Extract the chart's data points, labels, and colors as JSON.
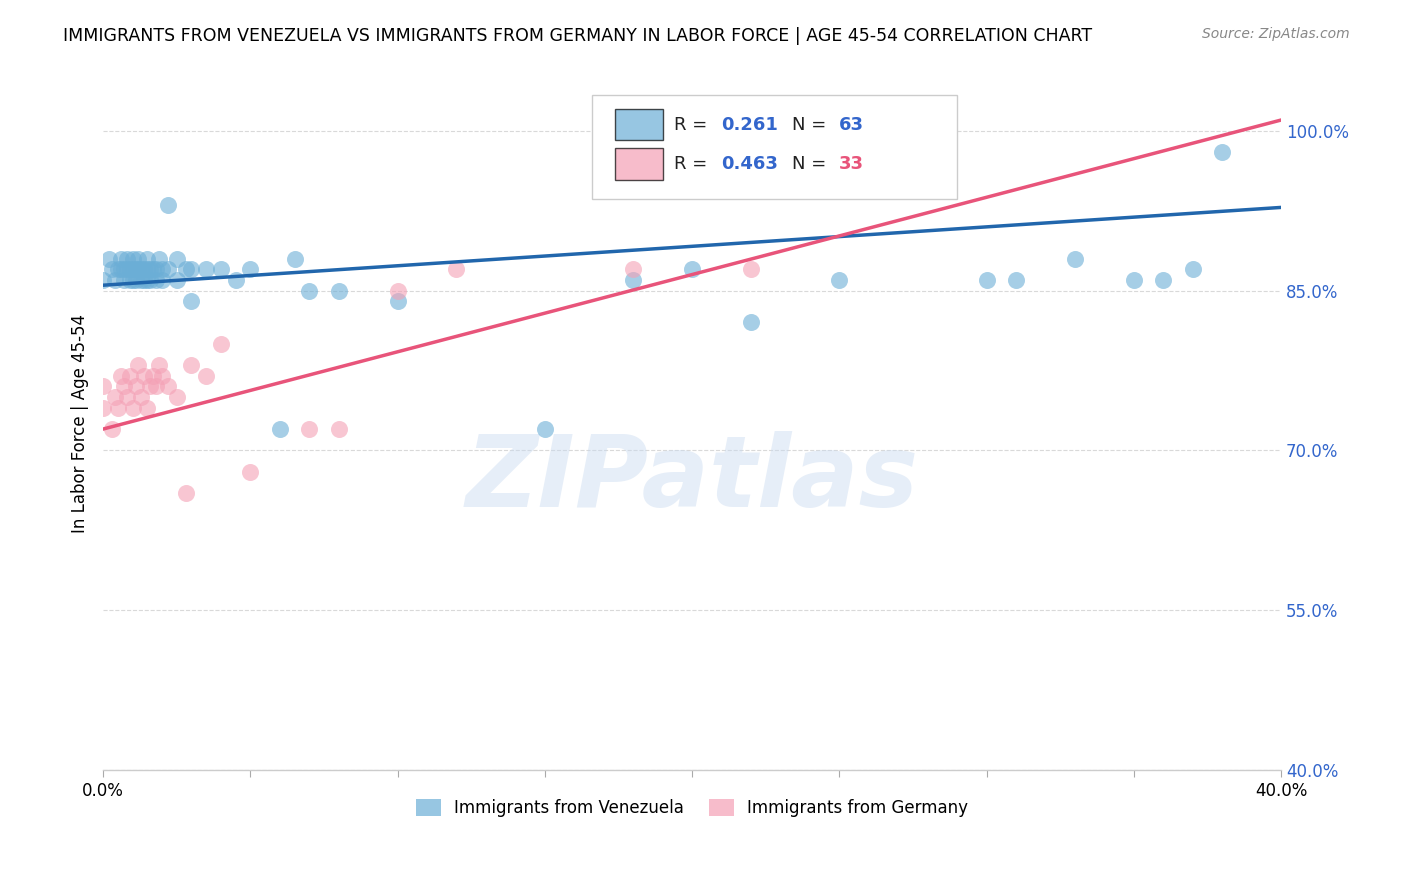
{
  "title": "IMMIGRANTS FROM VENEZUELA VS IMMIGRANTS FROM GERMANY IN LABOR FORCE | AGE 45-54 CORRELATION CHART",
  "source": "Source: ZipAtlas.com",
  "ylabel": "In Labor Force | Age 45-54",
  "xlim": [
    0.0,
    0.4
  ],
  "ylim": [
    0.4,
    1.05
  ],
  "yticks": [
    0.4,
    0.55,
    0.7,
    0.85,
    1.0
  ],
  "ytick_labels": [
    "40.0%",
    "55.0%",
    "70.0%",
    "85.0%",
    "100.0%"
  ],
  "venezuela_color": "#6baed6",
  "germany_color": "#f4a0b5",
  "venezuela_R": 0.261,
  "venezuela_N": 63,
  "germany_R": 0.463,
  "germany_N": 33,
  "venezuela_line_color": "#2166ac",
  "germany_line_color": "#e8547a",
  "background_color": "#ffffff",
  "grid_color": "#d9d9d9",
  "watermark": "ZIPatlas",
  "venezuela_x": [
    0.0,
    0.002,
    0.003,
    0.004,
    0.005,
    0.006,
    0.006,
    0.007,
    0.007,
    0.008,
    0.008,
    0.009,
    0.009,
    0.01,
    0.01,
    0.01,
    0.011,
    0.011,
    0.012,
    0.012,
    0.013,
    0.013,
    0.014,
    0.014,
    0.015,
    0.015,
    0.015,
    0.016,
    0.016,
    0.017,
    0.018,
    0.018,
    0.019,
    0.02,
    0.02,
    0.022,
    0.022,
    0.025,
    0.025,
    0.028,
    0.03,
    0.03,
    0.035,
    0.04,
    0.045,
    0.05,
    0.06,
    0.065,
    0.07,
    0.08,
    0.1,
    0.15,
    0.18,
    0.2,
    0.22,
    0.25,
    0.3,
    0.31,
    0.33,
    0.35,
    0.36,
    0.37,
    0.38
  ],
  "venezuela_y": [
    0.86,
    0.88,
    0.87,
    0.86,
    0.87,
    0.88,
    0.87,
    0.86,
    0.87,
    0.88,
    0.87,
    0.86,
    0.87,
    0.86,
    0.87,
    0.88,
    0.86,
    0.87,
    0.88,
    0.87,
    0.86,
    0.87,
    0.86,
    0.87,
    0.86,
    0.87,
    0.88,
    0.87,
    0.86,
    0.87,
    0.86,
    0.87,
    0.88,
    0.87,
    0.86,
    0.87,
    0.93,
    0.88,
    0.86,
    0.87,
    0.84,
    0.87,
    0.87,
    0.87,
    0.86,
    0.87,
    0.72,
    0.88,
    0.85,
    0.85,
    0.84,
    0.72,
    0.86,
    0.87,
    0.82,
    0.86,
    0.86,
    0.86,
    0.88,
    0.86,
    0.86,
    0.87,
    0.98
  ],
  "germany_x": [
    0.0,
    0.0,
    0.003,
    0.004,
    0.005,
    0.006,
    0.007,
    0.008,
    0.009,
    0.01,
    0.011,
    0.012,
    0.013,
    0.014,
    0.015,
    0.016,
    0.017,
    0.018,
    0.019,
    0.02,
    0.022,
    0.025,
    0.028,
    0.03,
    0.035,
    0.04,
    0.05,
    0.07,
    0.08,
    0.1,
    0.12,
    0.18,
    0.22
  ],
  "germany_y": [
    0.76,
    0.74,
    0.72,
    0.75,
    0.74,
    0.77,
    0.76,
    0.75,
    0.77,
    0.74,
    0.76,
    0.78,
    0.75,
    0.77,
    0.74,
    0.76,
    0.77,
    0.76,
    0.78,
    0.77,
    0.76,
    0.75,
    0.66,
    0.78,
    0.77,
    0.8,
    0.68,
    0.72,
    0.72,
    0.85,
    0.87,
    0.87,
    0.87
  ],
  "ven_line_x0": 0.0,
  "ven_line_x1": 0.4,
  "ven_line_y0": 0.855,
  "ven_line_y1": 0.928,
  "ger_line_x0": 0.0,
  "ger_line_x1": 0.4,
  "ger_line_y0": 0.72,
  "ger_line_y1": 1.01
}
